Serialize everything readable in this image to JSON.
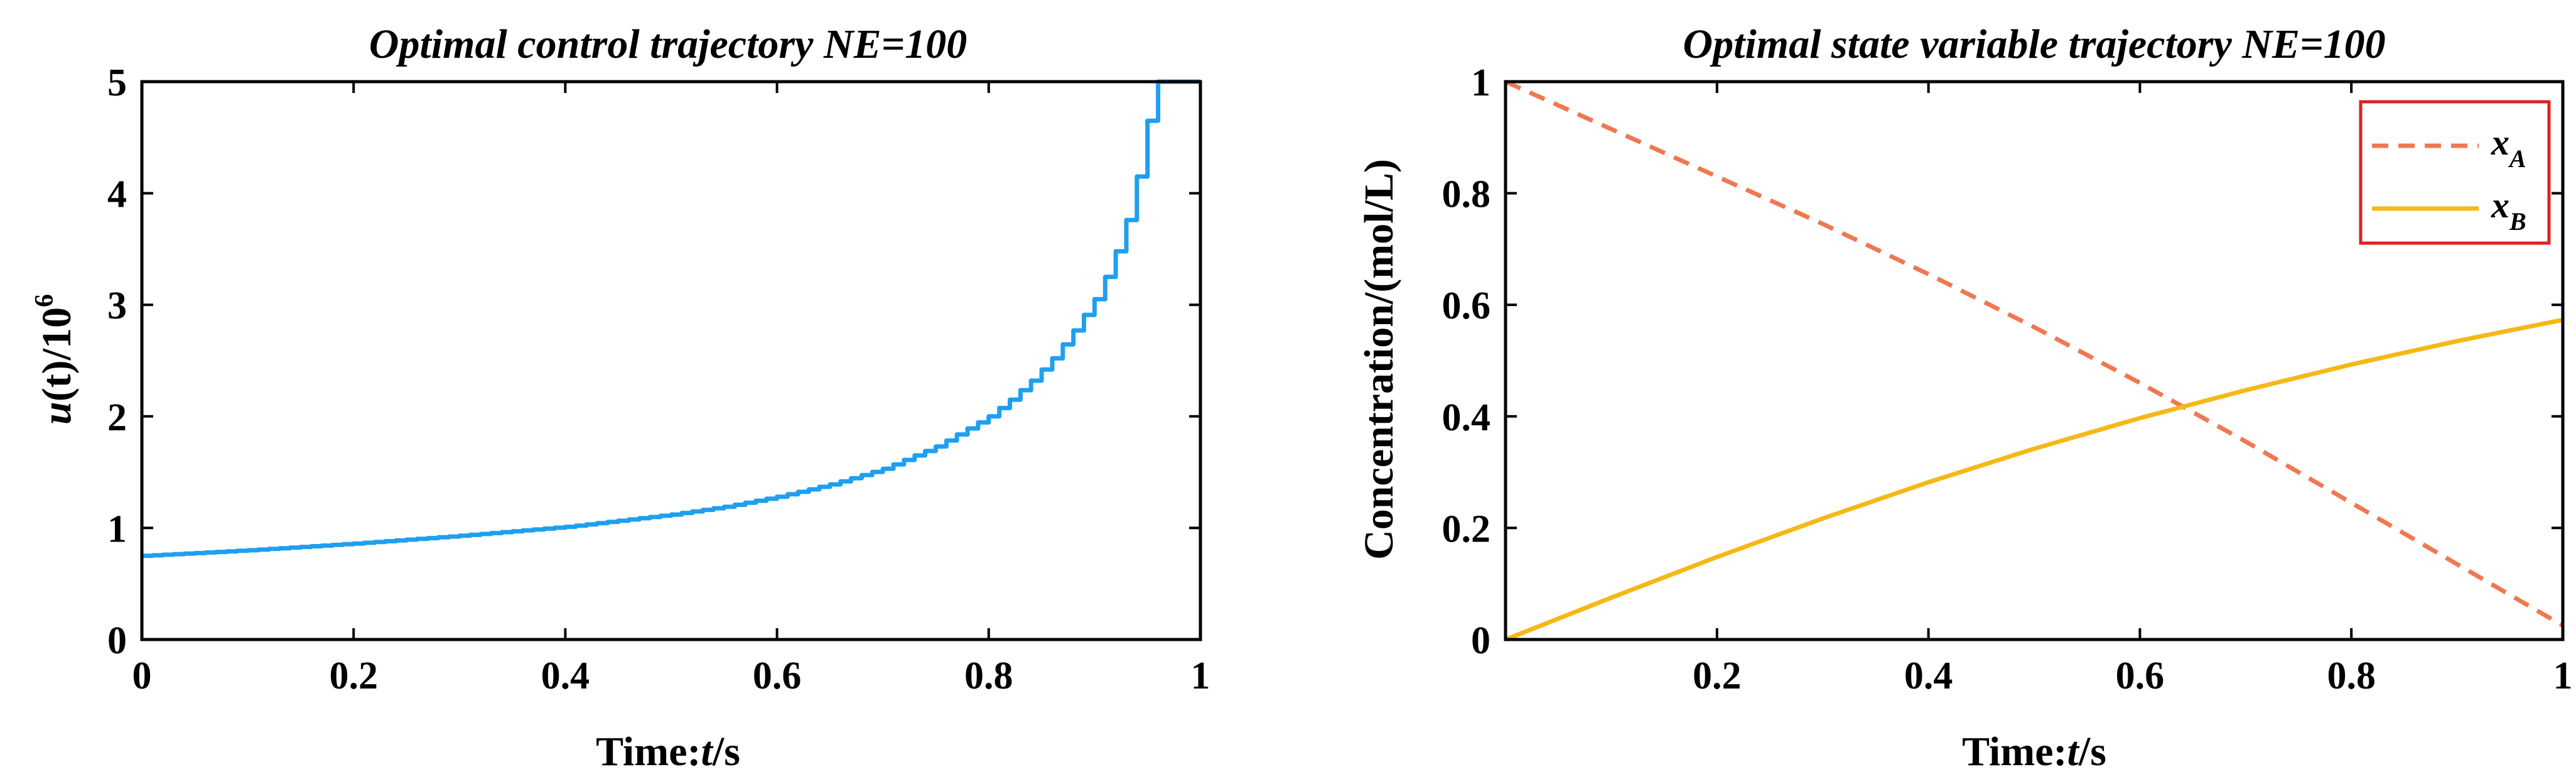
{
  "chart_data": [
    {
      "type": "line",
      "step": true,
      "title": "Optimal control trajectory NE=100",
      "xlabel": {
        "prefix": "Time:",
        "var": "t",
        "suffix": "/s"
      },
      "ylabel": {
        "var": "u",
        "mid": "(t)/10",
        "exp": "6"
      },
      "xlim": [
        0,
        1
      ],
      "ylim": [
        0,
        5
      ],
      "xticks": [
        "0",
        "0.2",
        "0.4",
        "0.6",
        "0.8",
        "1"
      ],
      "yticks": [
        "0",
        "1",
        "2",
        "3",
        "4",
        "5"
      ],
      "series": [
        {
          "name": "u",
          "color": "#1f9ff0",
          "step_base": 0.75,
          "step_rate": 0.01,
          "step_min": 0.35,
          "cap": 5,
          "x": [
            0.0,
            0.1,
            0.2,
            0.3,
            0.4,
            0.5,
            0.55,
            0.6,
            0.65,
            0.7,
            0.75,
            0.8,
            0.82,
            0.84,
            0.86,
            0.88,
            0.9,
            0.91,
            0.92,
            0.93,
            0.94,
            0.95,
            0.96,
            1.0
          ],
          "y": [
            0.75,
            0.8,
            0.86,
            0.93,
            1.01,
            1.12,
            1.19,
            1.28,
            1.39,
            1.53,
            1.73,
            2.0,
            2.15,
            2.32,
            2.52,
            2.77,
            3.05,
            3.25,
            3.48,
            3.76,
            4.15,
            4.65,
            5.0,
            5.0
          ]
        }
      ]
    },
    {
      "type": "line",
      "title": "Optimal state variable trajectory NE=100",
      "xlabel": {
        "prefix": "Time:",
        "var": "t",
        "suffix": "/s"
      },
      "ylabel": "Concentration/(mol/L)",
      "xlim": [
        0,
        1
      ],
      "ylim": [
        0,
        1
      ],
      "xticks": [
        "0.2",
        "0.4",
        "0.6",
        "0.8",
        "1"
      ],
      "xtick_values": [
        0.2,
        0.4,
        0.6,
        0.8,
        1.0
      ],
      "yticks": [
        "0",
        "0.2",
        "0.4",
        "0.6",
        "0.8",
        "1"
      ],
      "legend": {
        "placement": "top-right",
        "border_color": "#e02020"
      },
      "series": [
        {
          "name": "x",
          "sub": "A",
          "color": "#f07850",
          "dash": "dashed",
          "x": [
            0.0,
            0.1,
            0.2,
            0.3,
            0.4,
            0.5,
            0.6,
            0.7,
            0.8,
            0.9,
            1.0
          ],
          "y": [
            1.0,
            0.915,
            0.83,
            0.745,
            0.655,
            0.56,
            0.46,
            0.355,
            0.245,
            0.135,
            0.025
          ]
        },
        {
          "name": "x",
          "sub": "B",
          "color": "#f5b816",
          "dash": "solid",
          "x": [
            0.0,
            0.1,
            0.2,
            0.3,
            0.4,
            0.5,
            0.6,
            0.7,
            0.8,
            0.9,
            1.0
          ],
          "y": [
            0.0,
            0.075,
            0.148,
            0.217,
            0.282,
            0.342,
            0.397,
            0.447,
            0.493,
            0.535,
            0.573
          ]
        }
      ]
    }
  ]
}
